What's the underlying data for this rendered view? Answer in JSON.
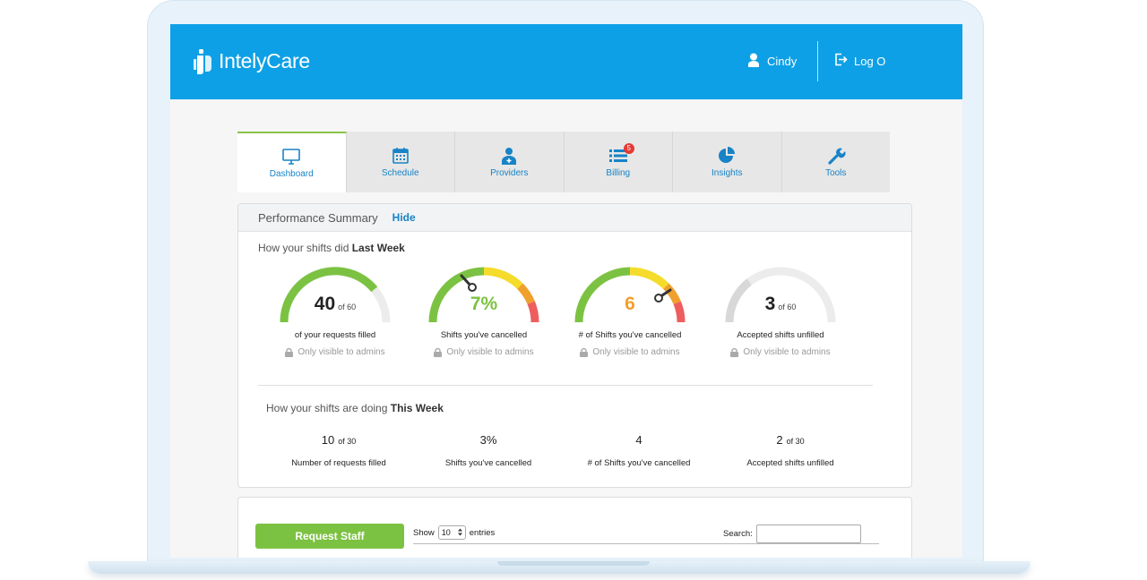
{
  "header": {
    "logo_text": "IntelyCare",
    "user_name": "Cindy",
    "logout_label": "Log O"
  },
  "tabs": [
    {
      "label": "Dashboard",
      "icon": "monitor-icon",
      "active": true
    },
    {
      "label": "Schedule",
      "icon": "calendar-icon"
    },
    {
      "label": "Providers",
      "icon": "nurse-icon"
    },
    {
      "label": "Billing",
      "icon": "list-icon",
      "badge": "5"
    },
    {
      "label": "Insights",
      "icon": "pie-chart-icon"
    },
    {
      "label": "Tools",
      "icon": "wrench-icon"
    }
  ],
  "performance": {
    "title": "Performance Summary",
    "hide_label": "Hide",
    "last_week": {
      "prefix": "How your shifts did ",
      "emphasis": "Last Week",
      "gauges": [
        {
          "value": "40",
          "suffix": "of 60",
          "label": "of your requests filled",
          "note": "Only visible to admins",
          "fill": 0.667
        },
        {
          "value": "7%",
          "suffix": "",
          "label": "Shifts you've cancelled",
          "note": "Only visible to admins",
          "fill": 0.07
        },
        {
          "value": "6",
          "suffix": "",
          "label": "# of Shifts you've cancelled",
          "note": "Only visible to admins",
          "fill": 0.6
        },
        {
          "value": "3",
          "suffix": "of 60",
          "label": "Accepted shifts unfilled",
          "note": "Only visible to admins",
          "fill": 0.05
        }
      ]
    },
    "this_week": {
      "prefix": "How your shifts are doing ",
      "emphasis": "This Week",
      "stats": [
        {
          "value": "10",
          "suffix": "of 30",
          "label": "Number of requests filled"
        },
        {
          "value": "3%",
          "suffix": "",
          "label": "Shifts you've cancelled"
        },
        {
          "value": "4",
          "suffix": "",
          "label": "# of Shifts you've cancelled"
        },
        {
          "value": "2",
          "suffix": "of 30",
          "label": "Accepted shifts unfilled"
        }
      ]
    }
  },
  "table": {
    "request_button": "Request Staff",
    "show_label": "Show",
    "entries_value": "10",
    "entries_label": "entries",
    "search_label": "Search:"
  },
  "colors": {
    "brand_blue": "#0ea0e6",
    "green": "#7cc242",
    "yellow": "#f5dc2c",
    "orange": "#f0a02c",
    "red": "#ee5e5e",
    "gray_track": "#e4e4e4"
  }
}
